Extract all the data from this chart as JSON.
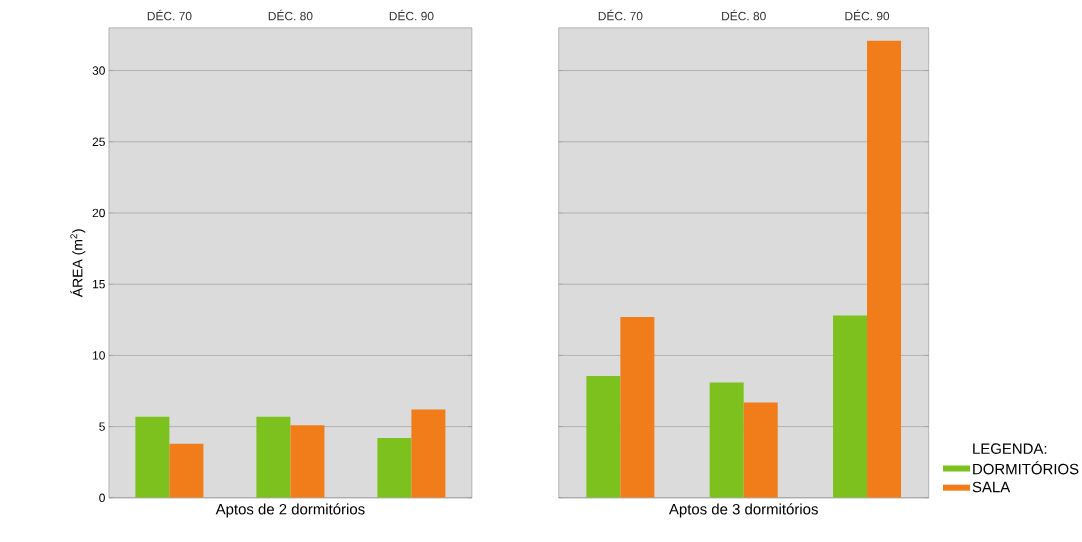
{
  "chart_data": [
    {
      "type": "bar",
      "xlabel": "Aptos de 2 dormitórios",
      "ylabel": "ÁREA (m$^{2}$)",
      "categories": [
        "DÉC. 70",
        "DÉC. 80",
        "DÉC. 90"
      ],
      "series": [
        {
          "color": "#7dc11f",
          "values": [
            5.7,
            5.7,
            4.2
          ]
        },
        {
          "color": "#f07d1a",
          "values": [
            3.8,
            5.1,
            6.2
          ]
        }
      ],
      "ylim": [
        0,
        33
      ],
      "yticks": [
        0,
        5,
        10,
        15,
        20,
        25,
        30
      ],
      "grid": "y"
    },
    {
      "type": "bar",
      "xlabel": "Aptos de 3 dormitórios",
      "legend_title": "LEGENDA:",
      "categories": [
        "DÉC. 70",
        "DÉC. 80",
        "DÉC. 90"
      ],
      "series": [
        {
          "name": "DORMITÓRIOS",
          "color": "#7dc11f",
          "values": [
            8.55,
            8.1,
            12.8
          ]
        },
        {
          "name": "SALA",
          "color": "#f07d1a",
          "values": [
            12.7,
            6.7,
            32.1
          ]
        }
      ],
      "ylim": [
        0,
        33
      ],
      "yticks": [
        0,
        5,
        10,
        15,
        20,
        25,
        30
      ],
      "grid": "y",
      "legend": "bottom right",
      "tick_labels": "x"
    }
  ]
}
